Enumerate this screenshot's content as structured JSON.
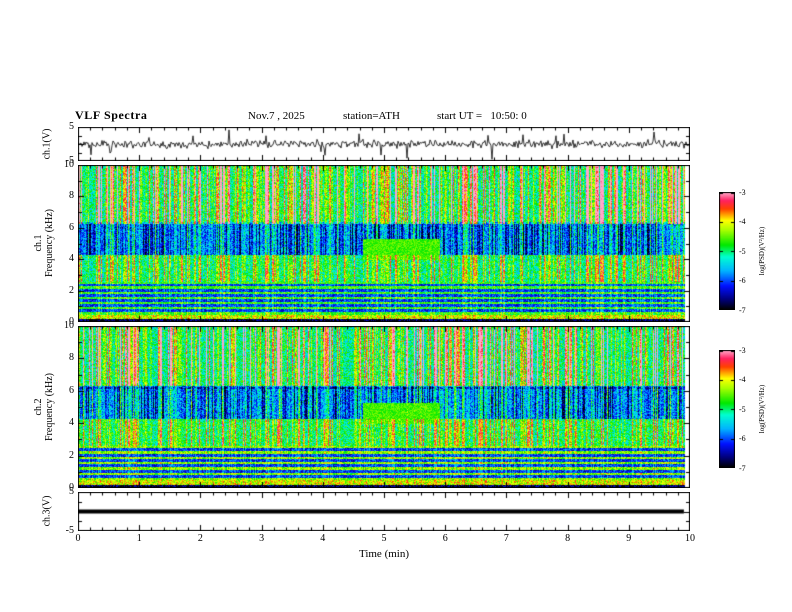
{
  "header": {
    "title": "VLF Spectra",
    "date": "Nov.7 , 2025",
    "station": "station=ATH",
    "start_ut": "start UT =   10:50: 0"
  },
  "axes": {
    "x_label": "Time (min)",
    "x_ticks": [
      0,
      1,
      2,
      3,
      4,
      5,
      6,
      7,
      8,
      9,
      10
    ],
    "x_range": [
      0,
      10
    ]
  },
  "panels": {
    "wave1": {
      "ylabel": "ch.1(V)",
      "yticks": [
        5,
        -5
      ],
      "yrange": [
        -5,
        5
      ]
    },
    "spec1": {
      "ylabel": "ch.1\nFrequency (kHz)",
      "yticks": [
        10,
        8,
        6,
        4,
        2,
        0
      ],
      "yrange": [
        0,
        10
      ]
    },
    "spec2": {
      "ylabel": "ch.2\nFrequency (kHz)",
      "yticks": [
        10,
        8,
        6,
        4,
        2,
        0
      ],
      "yrange": [
        0,
        10
      ]
    },
    "wave3": {
      "ylabel": "ch.3(V)",
      "yticks": [
        5,
        -5
      ],
      "yrange": [
        -5,
        5
      ]
    }
  },
  "colorbar": {
    "label": "log(PSD)(V²/Hz)",
    "ticks": [
      -3,
      -4,
      -5,
      -6,
      -7
    ],
    "range": [
      -7,
      -3
    ],
    "stops": [
      [
        0.0,
        "#000000"
      ],
      [
        0.09,
        "#000080"
      ],
      [
        0.2,
        "#0010ff"
      ],
      [
        0.33,
        "#00b4ff"
      ],
      [
        0.45,
        "#00ffd0"
      ],
      [
        0.55,
        "#00e800"
      ],
      [
        0.68,
        "#aaff00"
      ],
      [
        0.76,
        "#ffff00"
      ],
      [
        0.86,
        "#ff4000"
      ],
      [
        0.93,
        "#ff2060"
      ],
      [
        1.0,
        "#ffa8c8"
      ]
    ]
  },
  "chart_data": [
    {
      "type": "line",
      "name": "ch.1 waveform",
      "ylabel": "ch.1(V)",
      "xlabel": "Time (min)",
      "xlim": [
        0,
        10
      ],
      "ylim": [
        -5,
        5
      ],
      "x_end_min": 10,
      "summary": "Noisy broadband voltage trace centred on 0 V, typical excursions about ±1.5 V with frequent impulsive spikes reaching about ±4 V over the full record",
      "synthesis": {
        "seed": 11,
        "noise_rms": 0.55,
        "spike_probability": 0.05,
        "spike_max": 4.2
      }
    },
    {
      "type": "heatmap",
      "name": "ch.1 spectrogram",
      "xlabel": "Time (min)",
      "ylabel": "Frequency (kHz)",
      "zlabel": "log(PSD)(V²/Hz)",
      "xlim": [
        0,
        10
      ],
      "ylim": [
        0,
        10
      ],
      "zlim": [
        -7,
        -3
      ],
      "x_end_min": 9.93,
      "summary": "Dense vertical sferic striations: green/cyan background with red-yellow impulsive columns strongest above ~6.3 kHz; darker blue band with vertical streaks ~4.3-6.3 kHz; speckled cyan-green 2.6-4.3 kHz; horizontal power-line harmonic stripes (alternating yellow-green and dark) below ~2.6 kHz; bright band near 0.3-0.5 kHz; black strip at the bottom; light-green patch near 4.7-5.9 min at 4-5.3 kHz",
      "synthesis": {
        "seed": 7,
        "bands": [
          {
            "f": [
              0,
              0.22
            ],
            "base": -6.8,
            "stripe_gain": 0
          },
          {
            "f": [
              0.22,
              0.5
            ],
            "base": -4.2,
            "stripe_gain": 0.3
          },
          {
            "f": [
              0.5,
              2.6
            ],
            "harmonic_spacing_khz": 0.33,
            "bright": -4.8,
            "dark": -6.2,
            "stripe_gain": 0.5
          },
          {
            "f": [
              2.6,
              4.3
            ],
            "base": -5.2,
            "stripe_gain": 1.6
          },
          {
            "f": [
              4.3,
              6.3
            ],
            "base": -5.8,
            "stripe_gain": 1.1,
            "dark_streaks": true
          },
          {
            "f": [
              6.3,
              10
            ],
            "base": -5.2,
            "stripe_gain": 2.6
          }
        ],
        "patches": [
          {
            "t": [
              4.65,
              5.9
            ],
            "f": [
              4.0,
              5.3
            ],
            "min_value": -4.6
          }
        ],
        "notch_khz": 6.35
      }
    },
    {
      "type": "heatmap",
      "name": "ch.2 spectrogram",
      "xlabel": "Time (min)",
      "ylabel": "Frequency (kHz)",
      "zlabel": "log(PSD)(V²/Hz)",
      "xlim": [
        0,
        10
      ],
      "ylim": [
        0,
        10
      ],
      "zlim": [
        -7,
        -3
      ],
      "x_end_min": 9.93,
      "summary": "Similar to ch.1: vertical sferic striations over green/cyan background, blue streaked band ~4.3-6.3 kHz, slightly brighter yellow-green harmonic stripes below ~2.6 kHz, light-green patch near 4.7-5.9 min at 4-5.3 kHz",
      "synthesis": {
        "seed": 13,
        "bands": [
          {
            "f": [
              0,
              0.22
            ],
            "base": -6.8,
            "stripe_gain": 0
          },
          {
            "f": [
              0.22,
              0.5
            ],
            "base": -4.2,
            "stripe_gain": 0.3
          },
          {
            "f": [
              0.5,
              2.6
            ],
            "harmonic_spacing_khz": 0.33,
            "bright": -4.5,
            "dark": -6.2,
            "stripe_gain": 0.5
          },
          {
            "f": [
              2.6,
              4.3
            ],
            "base": -5.1,
            "stripe_gain": 1.6
          },
          {
            "f": [
              4.3,
              6.3
            ],
            "base": -5.7,
            "stripe_gain": 1.2,
            "dark_streaks": true
          },
          {
            "f": [
              6.3,
              10
            ],
            "base": -5.2,
            "stripe_gain": 2.6
          }
        ],
        "patches": [
          {
            "t": [
              4.65,
              5.9
            ],
            "f": [
              4.0,
              5.3
            ],
            "min_value": -4.6
          }
        ],
        "notch_khz": 6.2
      }
    },
    {
      "type": "line",
      "name": "ch.3 waveform",
      "ylabel": "ch.3(V)",
      "xlabel": "Time (min)",
      "xlim": [
        0,
        10
      ],
      "ylim": [
        -5,
        5
      ],
      "x_end_min": 9.9,
      "summary": "Constant 0 V — flat thick black line for the whole record (channel inactive)",
      "value": 0
    }
  ]
}
